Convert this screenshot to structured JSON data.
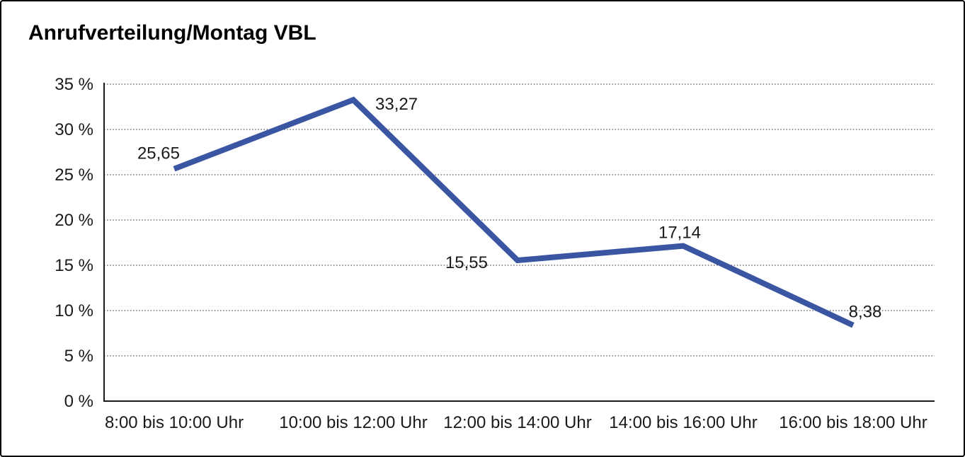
{
  "title": "Anrufverteilung/Montag VBL",
  "chart_data": {
    "type": "line",
    "title": "Anrufverteilung/Montag VBL",
    "categories": [
      "8:00 bis 10:00 Uhr",
      "10:00 bis 12:00 Uhr",
      "12:00 bis 14:00 Uhr",
      "14:00 bis 16:00 Uhr",
      "16:00 bis 18:00 Uhr"
    ],
    "values": [
      25.65,
      33.27,
      15.55,
      17.14,
      8.38
    ],
    "value_labels": [
      "25,65",
      "33,27",
      "15,55",
      "17,14",
      "8,38"
    ],
    "y_ticks": [
      "35 %",
      "30 %",
      "25 %",
      "20 %",
      "15 %",
      "10 %",
      "5 %",
      "0 %"
    ],
    "ylim": [
      0,
      35
    ],
    "y_tick_step": 5,
    "xlabel": "",
    "ylabel": "",
    "legend": "none",
    "grid": "horizontal-dotted",
    "line_color": "#3A56A3",
    "axis_color": "#1a1a1a",
    "gridline_color": "#555555",
    "label_color": "#1a1a1a"
  }
}
